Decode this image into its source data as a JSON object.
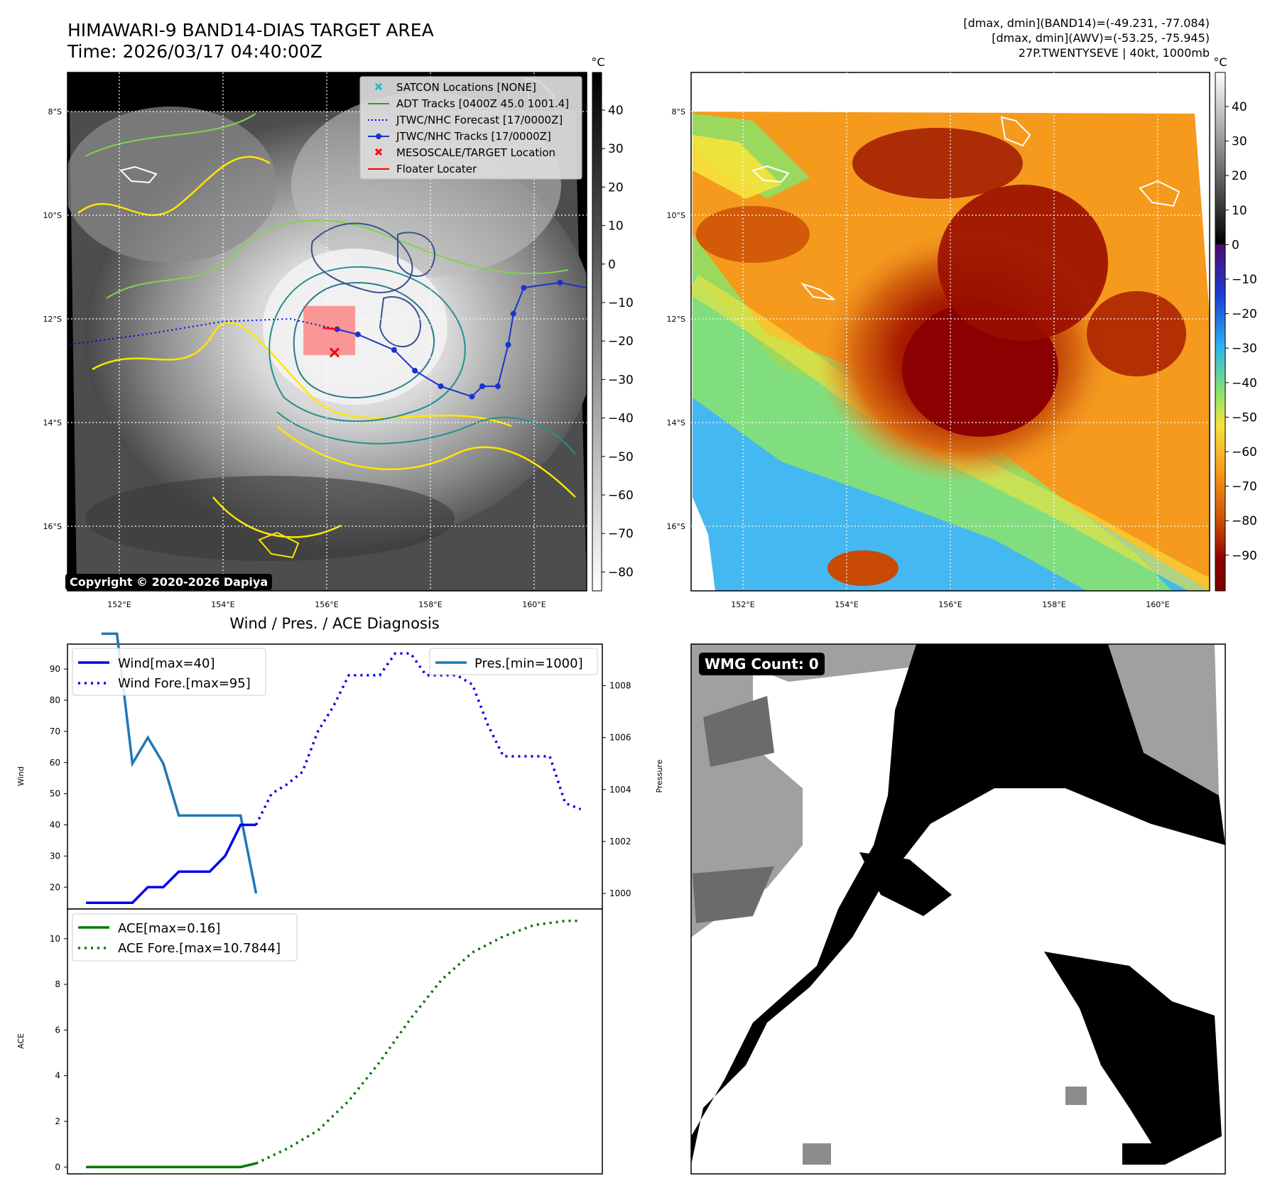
{
  "header": {
    "title": "HIMAWARI-9 BAND14-DIAS TARGET AREA",
    "time": "Time: 2026/03/17 04:40:00Z",
    "info_line1": "[dmax, dmin](BAND14)=(-49.231, -77.084)",
    "info_line2": "[dmax, dmin](AWV)=(-53.25, -75.945)",
    "info_line3": "27P.TWENTYSEVE | 40kt, 1000mb"
  },
  "copyright": "Copyright © 2020-2026 Dapiya",
  "wmg_label": "WMG Count: 0",
  "diag_title": "Wind / Pres. / ACE Diagnosis",
  "colors": {
    "wind": "#0000ee",
    "pressure": "#1f77b4",
    "ace": "#007800",
    "jtwc": "#1a33cc",
    "adt": "#2ca02c",
    "target": "#ff0000",
    "satcon": "#17becf"
  },
  "map": {
    "lat_labels": [
      "8°S",
      "10°S",
      "12°S",
      "14°S",
      "16°S"
    ],
    "lon_labels": [
      "152°E",
      "154°E",
      "156°E",
      "158°E",
      "160°E"
    ],
    "legend": [
      {
        "label": "SATCON Locations [NONE]",
        "icon": "cyan-x-marker"
      },
      {
        "label": "ADT Tracks [0400Z 45.0 1001.4]",
        "icon": "green-line"
      },
      {
        "label": "JTWC/NHC Forecast [17/0000Z]",
        "icon": "blue-dotted-line"
      },
      {
        "label": "JTWC/NHC Tracks [17/0000Z]",
        "icon": "blue-line-dot"
      },
      {
        "label": "MESOSCALE/TARGET Location",
        "icon": "red-x-marker"
      },
      {
        "label": "Floater Locater",
        "icon": "red-line"
      }
    ],
    "jtwc_track": [
      [
        161.0,
        11.4
      ],
      [
        160.5,
        11.3
      ],
      [
        159.8,
        11.4
      ],
      [
        159.6,
        11.9
      ],
      [
        159.5,
        12.5
      ],
      [
        159.3,
        13.3
      ],
      [
        159.0,
        13.3
      ],
      [
        158.8,
        13.5
      ],
      [
        158.2,
        13.3
      ],
      [
        157.7,
        13.0
      ],
      [
        157.3,
        12.6
      ],
      [
        156.6,
        12.3
      ],
      [
        156.2,
        12.2
      ]
    ],
    "jtwc_forecast": [
      [
        156.2,
        12.2
      ],
      [
        155.3,
        12.0
      ],
      [
        154.0,
        12.05
      ],
      [
        152.5,
        12.3
      ],
      [
        151.0,
        12.5
      ]
    ],
    "target": [
      156.15,
      12.65
    ],
    "floater_box": [
      [
        155.55,
        11.75
      ],
      [
        156.55,
        12.7
      ]
    ]
  },
  "colorbar_gray": {
    "unit": "°C",
    "ticks": [
      "40",
      "30",
      "20",
      "10",
      "0",
      "−10",
      "−20",
      "−30",
      "−40",
      "−50",
      "−60",
      "−70",
      "−80"
    ]
  },
  "colorbar_color": {
    "unit": "°C",
    "ticks": [
      "40",
      "30",
      "20",
      "10",
      "0",
      "−10",
      "−20",
      "−30",
      "−40",
      "−50",
      "−60",
      "−70",
      "−80",
      "−90"
    ]
  },
  "chart_data": [
    {
      "type": "line",
      "title": "Wind / Pres. / ACE Diagnosis",
      "ylabel": "Wind",
      "y2label": "Pressure",
      "ylim": [
        13,
        98
      ],
      "y2lim": [
        999.4,
        1009.6
      ],
      "yticks": [
        20,
        30,
        40,
        50,
        60,
        70,
        80,
        90
      ],
      "y2ticks": [
        1000,
        1002,
        1004,
        1006,
        1008
      ],
      "legend_left": [
        "Wind[max=40]",
        "Wind Fore.[max=95]"
      ],
      "legend_right": [
        "Pres.[min=1000]"
      ],
      "series": [
        {
          "name": "Wind[max=40]",
          "x": [
            0,
            1,
            2,
            3,
            4,
            5,
            6,
            7,
            8,
            9,
            10,
            11
          ],
          "values": [
            15,
            15,
            15,
            15,
            20,
            20,
            25,
            25,
            25,
            30,
            40,
            40
          ]
        },
        {
          "name": "Wind Fore.[max=95]",
          "x": [
            11,
            12,
            13,
            14,
            15,
            16,
            17,
            18,
            19,
            20,
            21,
            22,
            23,
            24,
            25,
            26,
            27,
            28,
            29,
            30,
            31,
            32
          ],
          "values": [
            40,
            50,
            53,
            57,
            70,
            78,
            88,
            88,
            88,
            95,
            95,
            88,
            88,
            88,
            85,
            72,
            62,
            62,
            62,
            62,
            47,
            45
          ]
        },
        {
          "name": "Pres.[min=1000]",
          "x": [
            1,
            2,
            3,
            4,
            5,
            6,
            7,
            8,
            9,
            10,
            11
          ],
          "values": [
            1010,
            1010,
            1005,
            1006,
            1005,
            1003,
            1003,
            1003,
            1003,
            1003,
            1000
          ]
        }
      ]
    },
    {
      "type": "line",
      "ylabel": "ACE",
      "ylim": [
        -0.3,
        11.3
      ],
      "yticks": [
        0,
        2,
        4,
        6,
        8,
        10
      ],
      "series": [
        {
          "name": "ACE[max=0.16]",
          "x": [
            0,
            10,
            11
          ],
          "values": [
            0,
            0,
            0.16
          ]
        },
        {
          "name": "ACE Fore.[max=10.7844]",
          "x": [
            11,
            13,
            15,
            17,
            19,
            21,
            23,
            25,
            27,
            29,
            31,
            32
          ],
          "values": [
            0.16,
            0.8,
            1.6,
            2.9,
            4.6,
            6.5,
            8.2,
            9.4,
            10.1,
            10.6,
            10.78,
            10.78
          ]
        }
      ]
    }
  ]
}
